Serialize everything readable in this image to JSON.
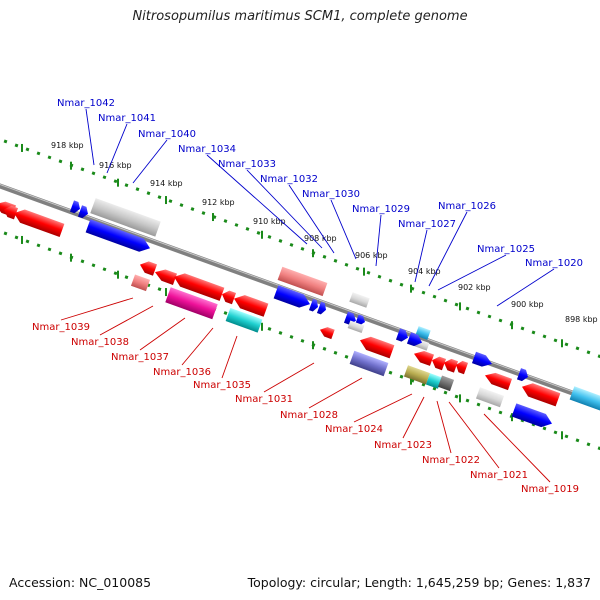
{
  "title": "Nitrosopumilus maritimus SCM1, complete genome",
  "footer": {
    "accession": "Accession: NC_010085",
    "summary": "Topology: circular; Length: 1,645,259 bp; Genes: 1,837"
  },
  "colors": {
    "forward_label": "#0000cc",
    "reverse_label": "#cc0000",
    "backbone": "#808080",
    "tick_dots": "#1a8a1a"
  },
  "scale_ticks": [
    "918 kbp",
    "916 kbp",
    "914 kbp",
    "912 kbp",
    "910 kbp",
    "908 kbp",
    "906 kbp",
    "904 kbp",
    "902 kbp",
    "900 kbp",
    "898 kbp"
  ],
  "forward_genes": [
    "Nmar_1042",
    "Nmar_1041",
    "Nmar_1040",
    "Nmar_1034",
    "Nmar_1033",
    "Nmar_1032",
    "Nmar_1030",
    "Nmar_1029",
    "Nmar_1027",
    "Nmar_1026",
    "Nmar_1025",
    "Nmar_1020"
  ],
  "reverse_genes": [
    "Nmar_1039",
    "Nmar_1038",
    "Nmar_1037",
    "Nmar_1036",
    "Nmar_1035",
    "Nmar_1031",
    "Nmar_1028",
    "Nmar_1024",
    "Nmar_1023",
    "Nmar_1022",
    "Nmar_1021",
    "Nmar_1019"
  ]
}
